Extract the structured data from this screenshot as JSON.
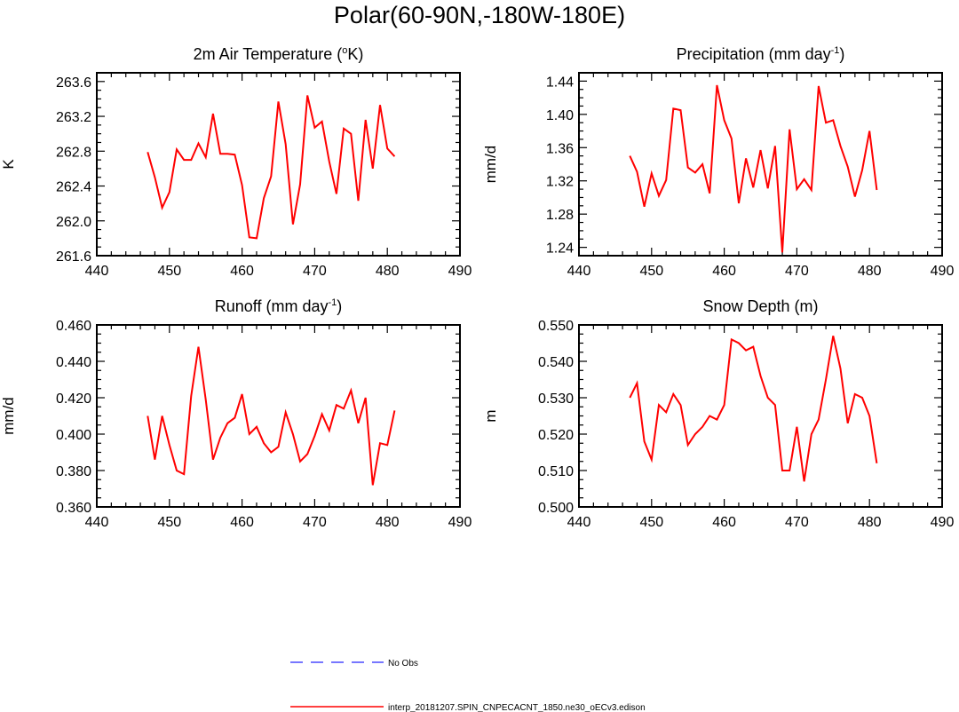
{
  "figure": {
    "title": "Polar(60-90N,-180W-180E)"
  },
  "legend": {
    "entries": [
      {
        "label": "No Obs",
        "color": "#4a4aff",
        "dash": "dashed"
      },
      {
        "label": "interp_20181207.SPIN_CNPECACNT_1850.ne30_oECv3.edison",
        "color": "#ff0000",
        "dash": "solid"
      }
    ]
  },
  "chart_data": [
    {
      "type": "line",
      "title": "2m Air Temperature (",
      "title_sup": "o",
      "title_after": "K)",
      "ylabel": "K",
      "xlim": [
        440,
        490
      ],
      "ylim": [
        261.6,
        263.7
      ],
      "xticks": [
        440,
        450,
        460,
        470,
        480,
        490
      ],
      "yticks": [
        "261.6",
        "262.0",
        "262.4",
        "262.8",
        "263.2",
        "263.6"
      ],
      "series": [
        {
          "name": "interp_20181207.SPIN_CNPECACNT_1850.ne30_oECv3.edison",
          "x": [
            447,
            448,
            449,
            450,
            451,
            452,
            453,
            454,
            455,
            456,
            457,
            458,
            459,
            460,
            461,
            462,
            463,
            464,
            465,
            466,
            467,
            468,
            469,
            470,
            471,
            472,
            473,
            474,
            475,
            476,
            477,
            478,
            479,
            480,
            481
          ],
          "values": [
            262.79,
            262.5,
            262.15,
            262.33,
            262.82,
            262.7,
            262.7,
            262.89,
            262.73,
            263.23,
            262.77,
            262.77,
            262.76,
            262.41,
            261.81,
            261.8,
            262.26,
            262.51,
            263.37,
            262.88,
            261.96,
            262.42,
            263.44,
            263.07,
            263.14,
            262.68,
            262.31,
            263.06,
            263.0,
            262.23,
            263.16,
            262.6,
            263.33,
            262.83,
            262.74
          ]
        }
      ]
    },
    {
      "type": "line",
      "title": "Precipitation (mm day",
      "title_sup": "-1",
      "title_after": ")",
      "ylabel": "mm/d",
      "xlim": [
        440,
        490
      ],
      "ylim": [
        1.23,
        1.45
      ],
      "xticks": [
        440,
        450,
        460,
        470,
        480,
        490
      ],
      "yticks": [
        "1.24",
        "1.28",
        "1.32",
        "1.36",
        "1.40",
        "1.44"
      ],
      "series": [
        {
          "name": "interp_20181207.SPIN_CNPECACNT_1850.ne30_oECv3.edison",
          "x": [
            447,
            448,
            449,
            450,
            451,
            452,
            453,
            454,
            455,
            456,
            457,
            458,
            459,
            460,
            461,
            462,
            463,
            464,
            465,
            466,
            467,
            468,
            469,
            470,
            471,
            472,
            473,
            474,
            475,
            476,
            477,
            478,
            479,
            480,
            481
          ],
          "values": [
            1.35,
            1.331,
            1.289,
            1.329,
            1.302,
            1.321,
            1.407,
            1.405,
            1.336,
            1.33,
            1.34,
            1.305,
            1.435,
            1.393,
            1.371,
            1.293,
            1.347,
            1.312,
            1.357,
            1.311,
            1.362,
            1.234,
            1.382,
            1.31,
            1.322,
            1.309,
            1.434,
            1.39,
            1.393,
            1.362,
            1.337,
            1.301,
            1.333,
            1.38,
            1.309
          ]
        }
      ]
    },
    {
      "type": "line",
      "title": "Runoff (mm day",
      "title_sup": "-1",
      "title_after": ")",
      "ylabel": "mm/d",
      "xlim": [
        440,
        490
      ],
      "ylim": [
        0.36,
        0.46
      ],
      "xticks": [
        440,
        450,
        460,
        470,
        480,
        490
      ],
      "yticks": [
        "0.360",
        "0.380",
        "0.400",
        "0.420",
        "0.440",
        "0.460"
      ],
      "series": [
        {
          "name": "interp_20181207.SPIN_CNPECACNT_1850.ne30_oECv3.edison",
          "x": [
            447,
            448,
            449,
            450,
            451,
            452,
            453,
            454,
            455,
            456,
            457,
            458,
            459,
            460,
            461,
            462,
            463,
            464,
            465,
            466,
            467,
            468,
            469,
            470,
            471,
            472,
            473,
            474,
            475,
            476,
            477,
            478,
            479,
            480,
            481
          ],
          "values": [
            0.41,
            0.386,
            0.41,
            0.394,
            0.38,
            0.378,
            0.421,
            0.448,
            0.419,
            0.386,
            0.398,
            0.406,
            0.409,
            0.422,
            0.4,
            0.404,
            0.395,
            0.39,
            0.393,
            0.412,
            0.4,
            0.385,
            0.389,
            0.399,
            0.411,
            0.402,
            0.416,
            0.414,
            0.424,
            0.406,
            0.42,
            0.372,
            0.395,
            0.394,
            0.413
          ]
        }
      ]
    },
    {
      "type": "line",
      "title": "Snow Depth (m)",
      "title_sup": "",
      "title_after": "",
      "ylabel": "m",
      "xlim": [
        440,
        490
      ],
      "ylim": [
        0.5,
        0.55
      ],
      "xticks": [
        440,
        450,
        460,
        470,
        480,
        490
      ],
      "yticks": [
        "0.500",
        "0.510",
        "0.520",
        "0.530",
        "0.540",
        "0.550"
      ],
      "series": [
        {
          "name": "interp_20181207.SPIN_CNPECACNT_1850.ne30_oECv3.edison",
          "x": [
            447,
            448,
            449,
            450,
            451,
            452,
            453,
            454,
            455,
            456,
            457,
            458,
            459,
            460,
            461,
            462,
            463,
            464,
            465,
            466,
            467,
            468,
            469,
            470,
            471,
            472,
            473,
            474,
            475,
            476,
            477,
            478,
            479,
            480,
            481
          ],
          "values": [
            0.53,
            0.534,
            0.518,
            0.513,
            0.528,
            0.526,
            0.531,
            0.528,
            0.517,
            0.52,
            0.522,
            0.525,
            0.524,
            0.528,
            0.546,
            0.545,
            0.543,
            0.544,
            0.536,
            0.53,
            0.528,
            0.51,
            0.51,
            0.522,
            0.507,
            0.52,
            0.524,
            0.535,
            0.547,
            0.538,
            0.523,
            0.531,
            0.53,
            0.525,
            0.512
          ]
        }
      ]
    }
  ]
}
